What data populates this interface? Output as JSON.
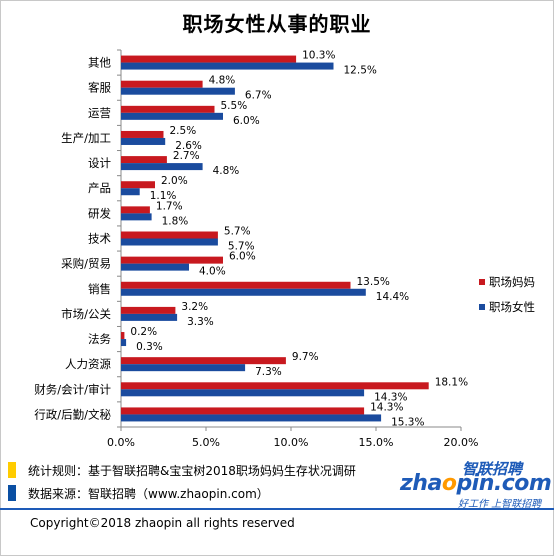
{
  "title": "职场女性从事的职业",
  "chart_data": {
    "type": "bar",
    "orientation": "horizontal",
    "title": "职场女性从事的职业",
    "categories": [
      "其他",
      "客服",
      "运营",
      "生产/加工",
      "设计",
      "产品",
      "研发",
      "技术",
      "采购/贸易",
      "销售",
      "市场/公关",
      "法务",
      "人力资源",
      "财务/会计/审计",
      "行政/后勤/文秘"
    ],
    "series": [
      {
        "name": "职场妈妈",
        "color": "#c8191f",
        "values": [
          10.3,
          4.8,
          5.5,
          2.5,
          2.7,
          2.0,
          1.7,
          5.7,
          6.0,
          13.5,
          3.2,
          0.2,
          9.7,
          18.1,
          14.3
        ],
        "labels": [
          "10.3%",
          "4.8%",
          "5.5%",
          "2.5%",
          "2.7%",
          "2.0%",
          "1.7%",
          "5.7%",
          "6.0%",
          "13.5%",
          "3.2%",
          "0.2%",
          "9.7%",
          "18.1%",
          "14.3%"
        ]
      },
      {
        "name": "职场女性",
        "color": "#1a4b9e",
        "values": [
          12.5,
          6.7,
          6.0,
          2.6,
          4.8,
          1.1,
          1.8,
          5.7,
          4.0,
          14.4,
          3.3,
          0.3,
          7.3,
          14.3,
          15.3
        ],
        "labels": [
          "12.5%",
          "6.7%",
          "6.0%",
          "2.6%",
          "4.8%",
          "1.1%",
          "1.8%",
          "5.7%",
          "4.0%",
          "14.4%",
          "3.3%",
          "0.3%",
          "7.3%",
          "14.3%",
          "15.3%"
        ]
      }
    ],
    "xlim": [
      0,
      20
    ],
    "xticks": [
      0,
      5,
      10,
      15,
      20
    ],
    "xtick_labels": [
      "0.0%",
      "5.0%",
      "10.0%",
      "15.0%",
      "20.0%"
    ],
    "legend": "right",
    "grid": false
  },
  "footer": {
    "note_rule": "统计规则：基于智联招聘&宝宝树2018职场妈妈生存状况调研",
    "note_source": "数据来源：智联招聘（www.zhaopin.com）",
    "copyright": "Copyright©2018 zhaopin all rights reserved",
    "logo_cn": "智联招聘",
    "logo_en_pre": "zha",
    "logo_en_o": "o",
    "logo_en_post": "pin.com",
    "logo_slogan": "好工作  上智联招聘"
  }
}
